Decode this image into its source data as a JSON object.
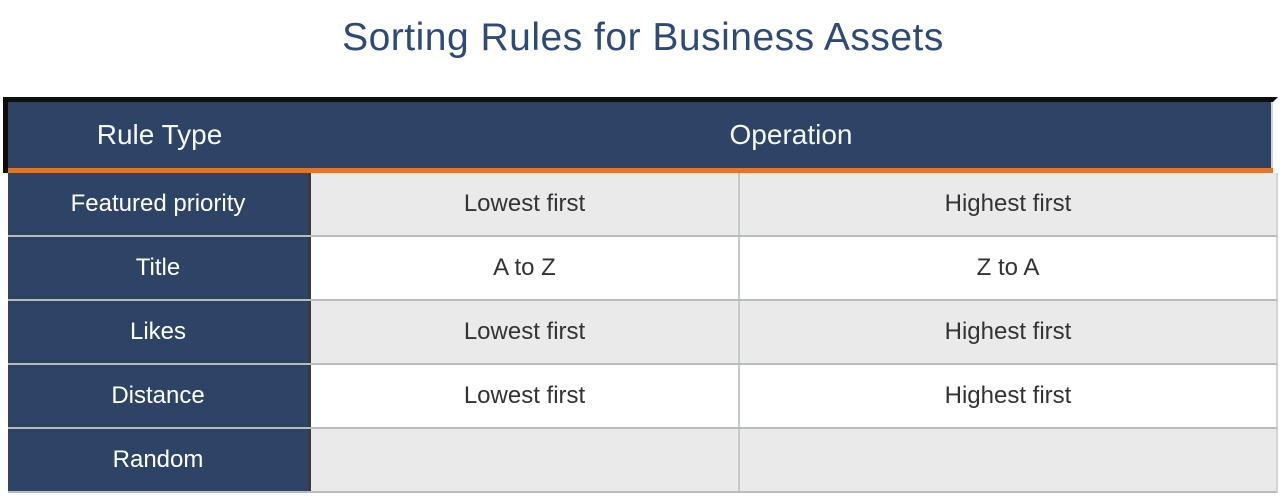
{
  "title": "Sorting Rules for Business Assets",
  "table": {
    "header": {
      "rule_type": "Rule Type",
      "operation": "Operation"
    },
    "rows": [
      {
        "rule": "Featured priority",
        "asc": "Lowest first",
        "desc": "Highest first"
      },
      {
        "rule": "Title",
        "asc": "A to Z",
        "desc": "Z to A"
      },
      {
        "rule": "Likes",
        "asc": "Lowest first",
        "desc": "Highest first"
      },
      {
        "rule": "Distance",
        "asc": "Lowest first",
        "desc": "Highest first"
      },
      {
        "rule": "Random",
        "asc": "",
        "desc": ""
      }
    ]
  },
  "colors": {
    "title_text": "#2e4a78",
    "table_header_bg": "#2e4467",
    "accent_orange": "#e0752c",
    "shaded_row_bg": "#e9eae9",
    "header_frame_black": "#0e0e0e"
  }
}
